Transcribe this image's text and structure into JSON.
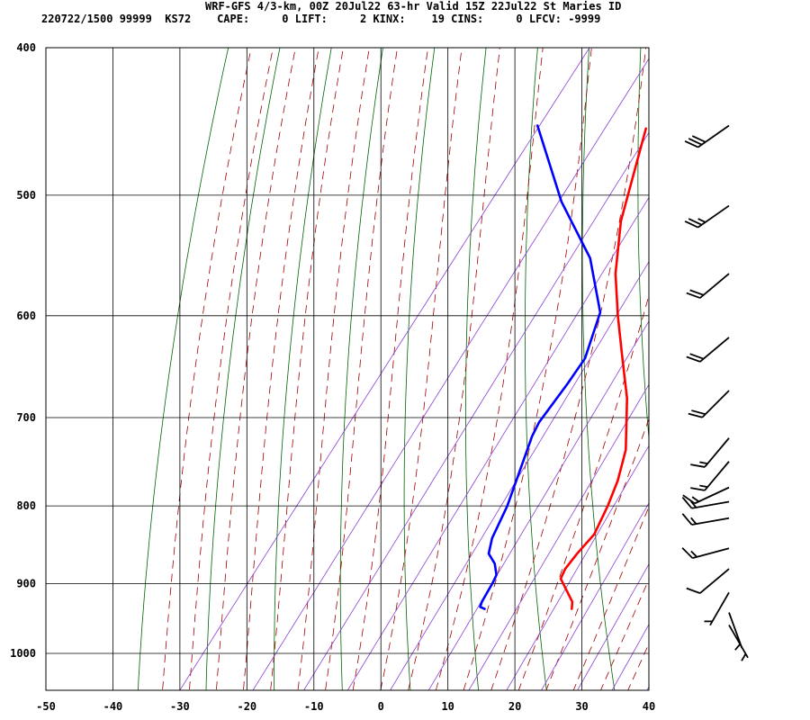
{
  "header": {
    "line1": "WRF-GFS 4/3-km, 00Z 20Jul22 63-hr Valid 15Z 22Jul22 St Maries ID",
    "line2": "220722/1500 99999  KS72    CAPE:     0 LIFT:     2 KINX:    19 CINS:     0 LFCV: -9999"
  },
  "chart_data": {
    "type": "line",
    "title": "WRF-GFS 4/3-km, 00Z 20Jul22 63-hr Valid 15Z 22Jul22 St Maries ID",
    "xlabel": "",
    "ylabel": "",
    "xlim": [
      -50,
      40
    ],
    "ylim": [
      1050,
      400
    ],
    "y_scale": "log",
    "grid": true,
    "x_ticks": [
      "-50",
      "-40",
      "-30",
      "-20",
      "-10",
      "0",
      "10",
      "20",
      "30",
      "40"
    ],
    "y_ticks": [
      "400",
      "500",
      "600",
      "700",
      "800",
      "900",
      "1000"
    ],
    "series": [
      {
        "color": "#ff0000",
        "points": [
          [
            19.5,
            935
          ],
          [
            18.8,
            925
          ],
          [
            14.5,
            893
          ],
          [
            14.1,
            880
          ],
          [
            14.2,
            860
          ],
          [
            14.6,
            835
          ],
          [
            13.5,
            800
          ],
          [
            12.2,
            770
          ],
          [
            10.0,
            735
          ],
          [
            4.5,
            680
          ],
          [
            -1.0,
            637
          ],
          [
            -6.0,
            600
          ],
          [
            -11.0,
            563
          ],
          [
            -16.0,
            520
          ],
          [
            -22.5,
            452
          ]
        ]
      },
      {
        "color": "#0000ff",
        "points": [
          [
            6.5,
            935
          ],
          [
            5.6,
            932
          ],
          [
            5.3,
            925
          ],
          [
            4.8,
            898
          ],
          [
            4.5,
            888
          ],
          [
            3.0,
            873
          ],
          [
            1.0,
            860
          ],
          [
            -0.2,
            840
          ],
          [
            -1.5,
            800
          ],
          [
            -5.5,
            720
          ],
          [
            -6.0,
            705
          ],
          [
            -6.0,
            665
          ],
          [
            -6.2,
            640
          ],
          [
            -9.0,
            597
          ],
          [
            -16.5,
            550
          ],
          [
            -27.0,
            505
          ],
          [
            -39.0,
            450
          ]
        ]
      }
    ]
  },
  "overlay": {
    "isobar_color": "#000000",
    "isotherm_color": "#000000",
    "dry_adiabat_color": "#006400",
    "moist_adiabat_color": "#a00000",
    "mixing_ratio_color": "#8b3fd6"
  },
  "wind_barbs": [
    {
      "pressure": 450,
      "dir": 235,
      "speed": 30
    },
    {
      "pressure": 508,
      "dir": 235,
      "speed": 25
    },
    {
      "pressure": 563,
      "dir": 230,
      "speed": 20
    },
    {
      "pressure": 620,
      "dir": 230,
      "speed": 20
    },
    {
      "pressure": 672,
      "dir": 225,
      "speed": 20
    },
    {
      "pressure": 722,
      "dir": 220,
      "speed": 15
    },
    {
      "pressure": 748,
      "dir": 220,
      "speed": 15
    },
    {
      "pressure": 778,
      "dir": 245,
      "speed": 15
    },
    {
      "pressure": 795,
      "dir": 260,
      "speed": 15
    },
    {
      "pressure": 815,
      "dir": 260,
      "speed": 15
    },
    {
      "pressure": 853,
      "dir": 255,
      "speed": 15
    },
    {
      "pressure": 880,
      "dir": 230,
      "speed": 10
    },
    {
      "pressure": 912,
      "dir": 210,
      "speed": 5
    },
    {
      "pressure": 940,
      "dir": 160,
      "speed": 5
    },
    {
      "pressure": 958,
      "dir": 150,
      "speed": 5
    }
  ]
}
